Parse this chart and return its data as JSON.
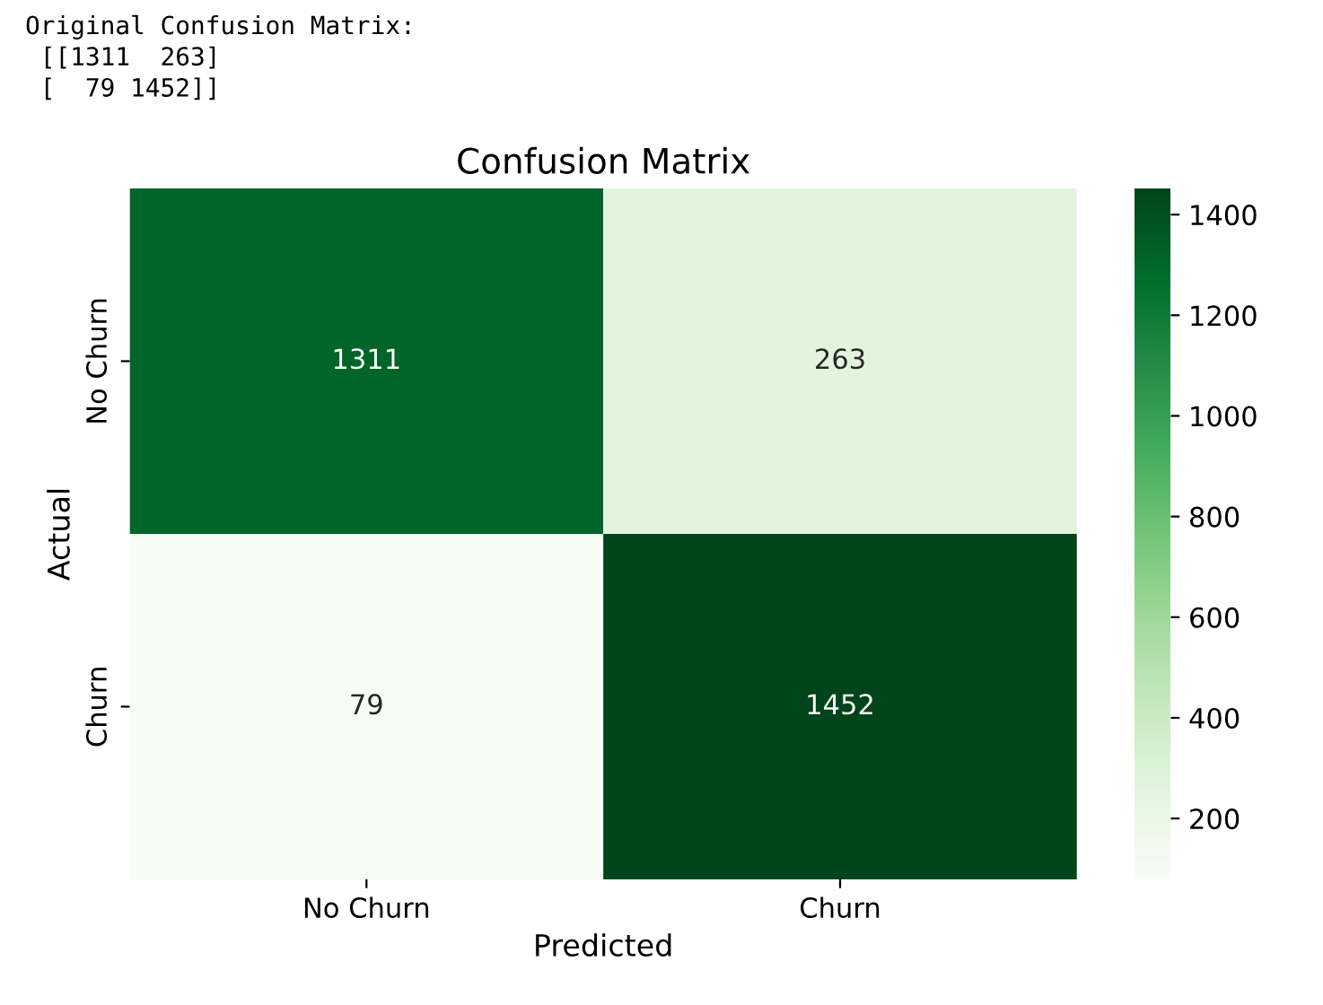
{
  "chart_data": {
    "type": "heatmap",
    "title": "Confusion Matrix",
    "xlabel": "Predicted",
    "ylabel": "Actual",
    "categories": [
      "No Churn",
      "Churn"
    ],
    "y_categories": [
      "No Churn",
      "Churn"
    ],
    "cells": [
      [
        1311,
        263
      ],
      [
        79,
        1452
      ]
    ],
    "data_labels": true,
    "clim": [
      79,
      1452
    ],
    "cticks": [
      200,
      400,
      600,
      800,
      1000,
      1200,
      1400
    ],
    "annotations": [
      "Original Confusion Matrix:",
      " [[1311  263]",
      " [  79 1452]]"
    ]
  }
}
